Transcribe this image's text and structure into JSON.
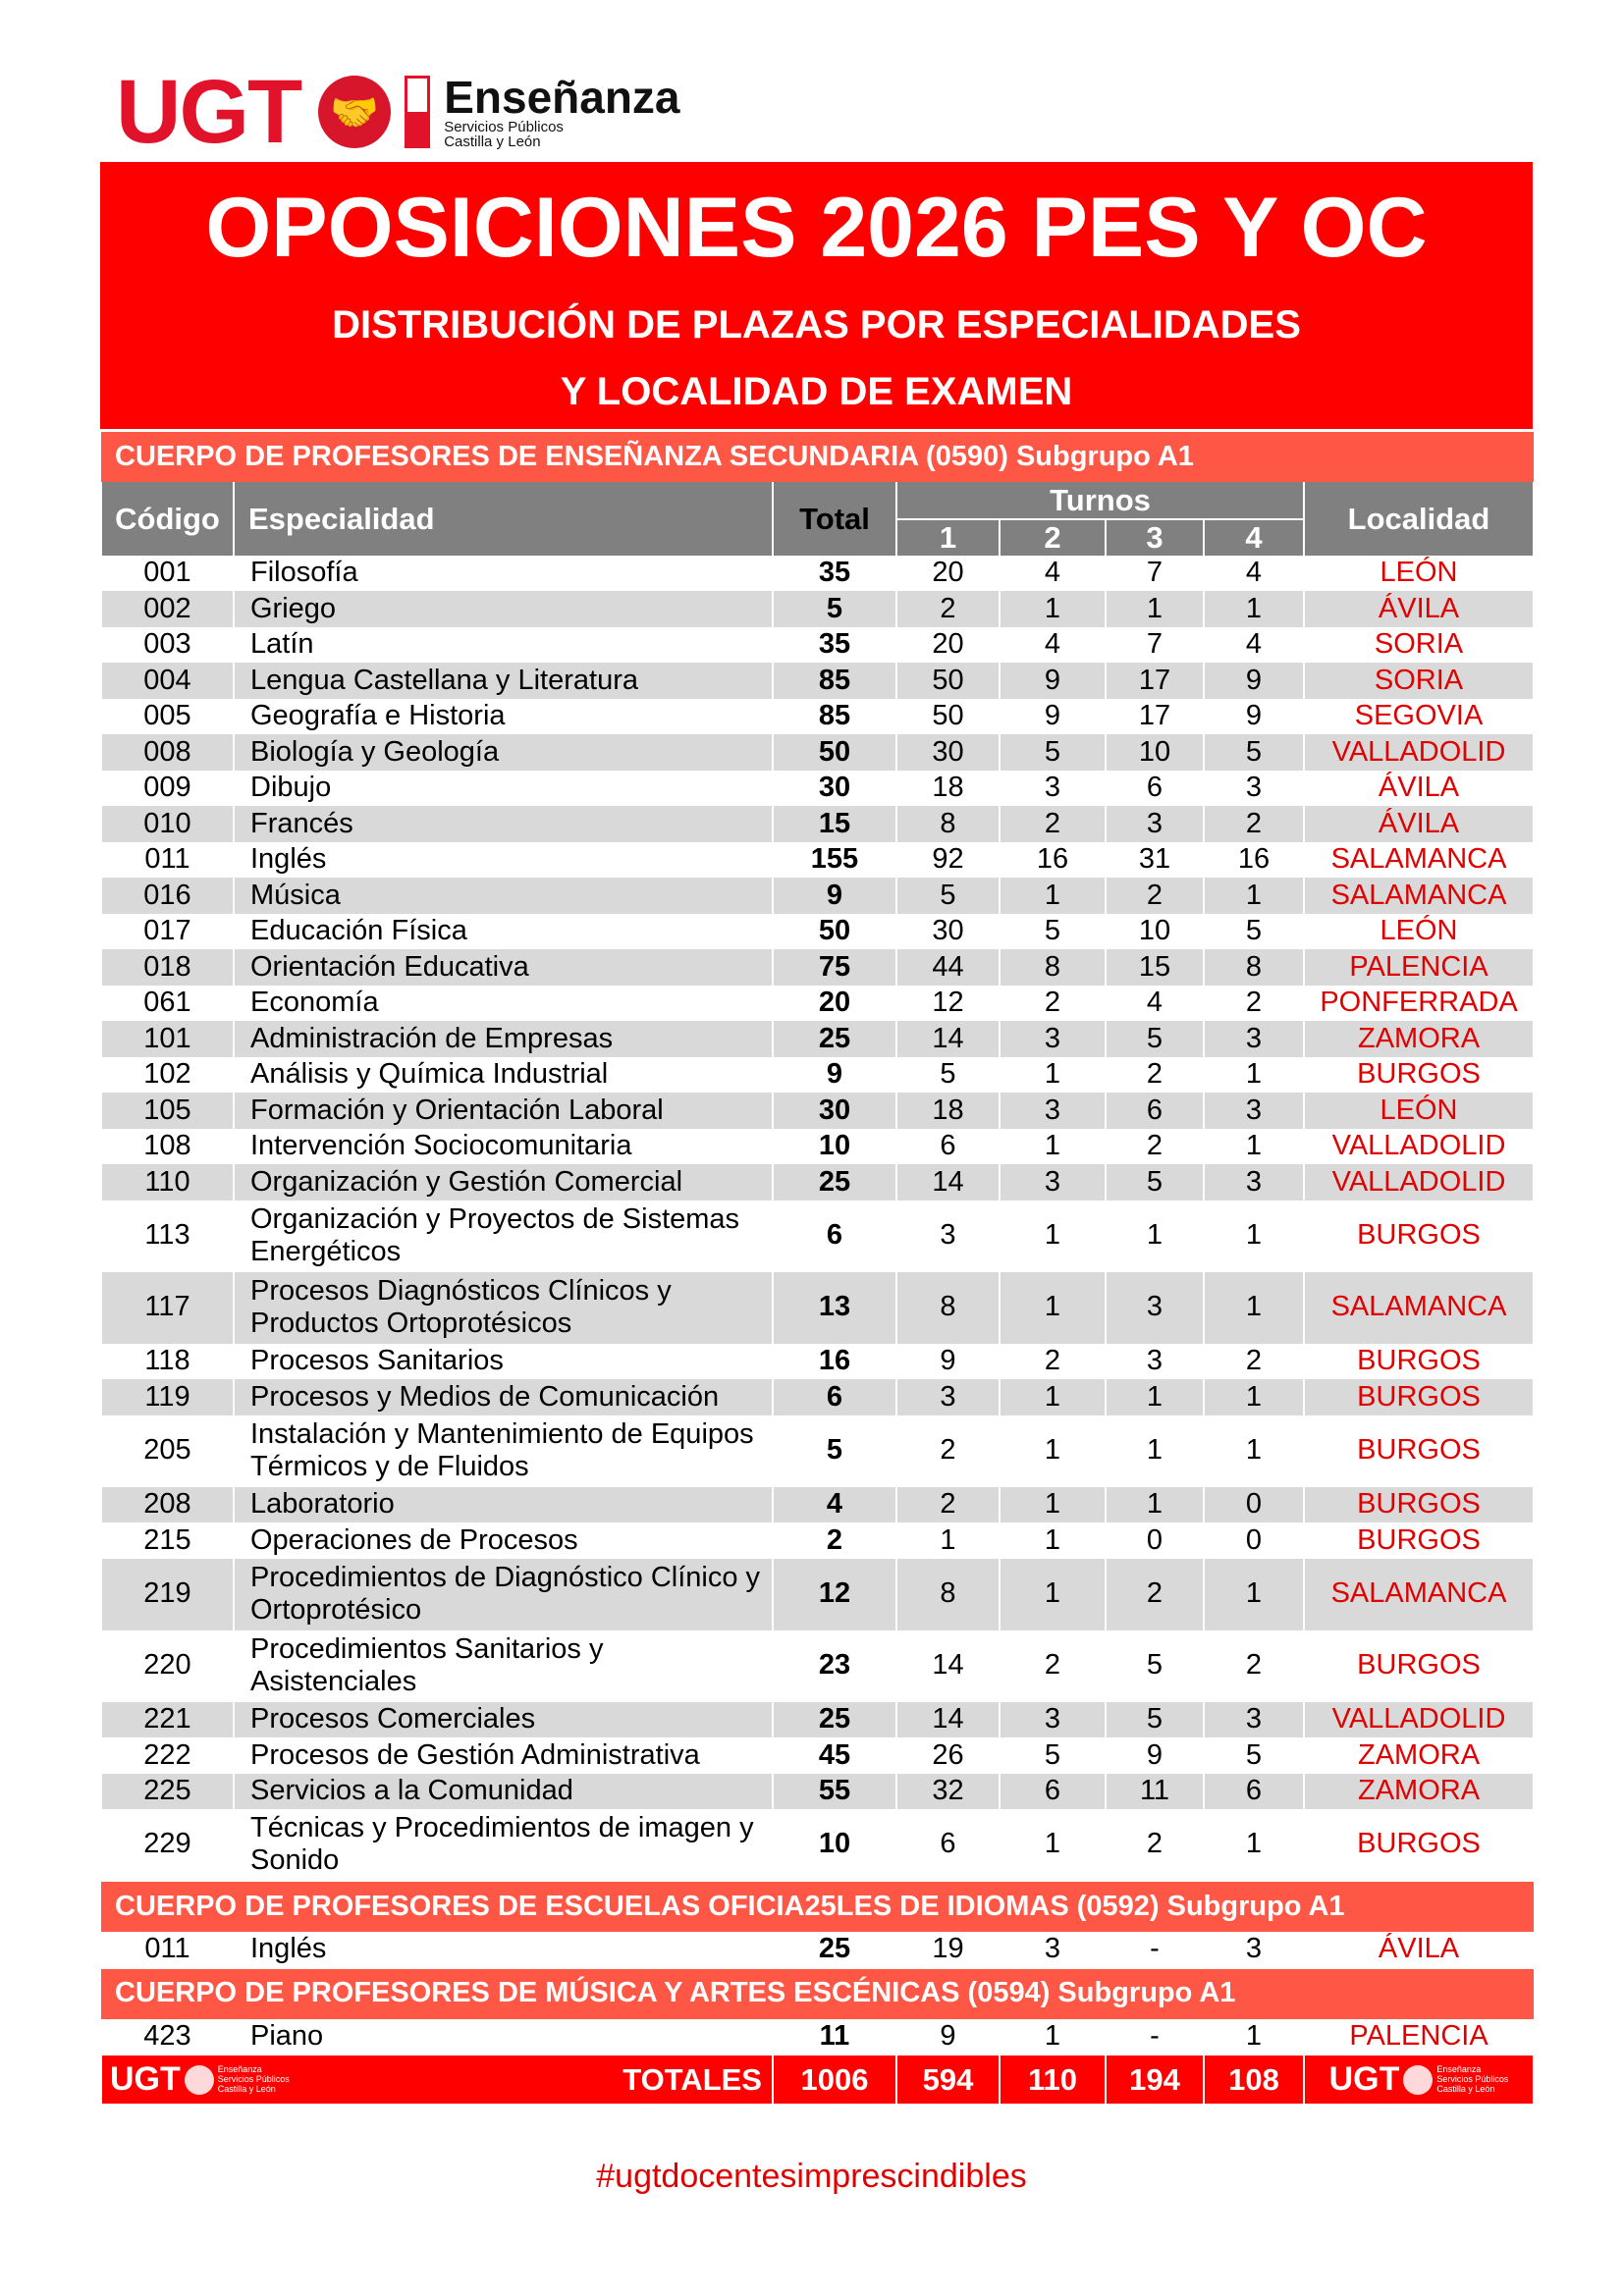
{
  "logo": {
    "ugt": "UGT",
    "name": "Enseñanza",
    "line1": "Servicios Públicos",
    "line2": "Castilla y León"
  },
  "title": "OPOSICIONES 2026 PES Y OC",
  "subtitle1": "DISTRIBUCIÓN DE PLAZAS POR ESPECIALIDADES",
  "subtitle2": "Y LOCALIDAD DE EXAMEN",
  "headers": {
    "codigo": "Código",
    "especialidad": "Especialidad",
    "total": "Total",
    "turnos": "Turnos",
    "t1": "1",
    "t2": "2",
    "t3": "3",
    "t4": "4",
    "localidad": "Localidad"
  },
  "sections": [
    {
      "title": "CUERPO DE PROFESORES DE ENSEÑANZA SECUNDARIA (0590) Subgrupo A1",
      "rows": [
        [
          "001",
          "Filosofía",
          "35",
          "20",
          "4",
          "7",
          "4",
          "LEÓN"
        ],
        [
          "002",
          "Griego",
          "5",
          "2",
          "1",
          "1",
          "1",
          "ÁVILA"
        ],
        [
          "003",
          "Latín",
          "35",
          "20",
          "4",
          "7",
          "4",
          "SORIA"
        ],
        [
          "004",
          "Lengua Castellana y Literatura",
          "85",
          "50",
          "9",
          "17",
          "9",
          "SORIA"
        ],
        [
          "005",
          "Geografía e Historia",
          "85",
          "50",
          "9",
          "17",
          "9",
          "SEGOVIA"
        ],
        [
          "008",
          "Biología y Geología",
          "50",
          "30",
          "5",
          "10",
          "5",
          "VALLADOLID"
        ],
        [
          "009",
          "Dibujo",
          "30",
          "18",
          "3",
          "6",
          "3",
          "ÁVILA"
        ],
        [
          "010",
          "Francés",
          "15",
          "8",
          "2",
          "3",
          "2",
          "ÁVILA"
        ],
        [
          "011",
          "Inglés",
          "155",
          "92",
          "16",
          "31",
          "16",
          "SALAMANCA"
        ],
        [
          "016",
          "Música",
          "9",
          "5",
          "1",
          "2",
          "1",
          "SALAMANCA"
        ],
        [
          "017",
          "Educación Física",
          "50",
          "30",
          "5",
          "10",
          "5",
          "LEÓN"
        ],
        [
          "018",
          "Orientación Educativa",
          "75",
          "44",
          "8",
          "15",
          "8",
          "PALENCIA"
        ],
        [
          "061",
          "Economía",
          "20",
          "12",
          "2",
          "4",
          "2",
          "PONFERRADA"
        ],
        [
          "101",
          "Administración de Empresas",
          "25",
          "14",
          "3",
          "5",
          "3",
          "ZAMORA"
        ],
        [
          "102",
          "Análisis y Química Industrial",
          "9",
          "5",
          "1",
          "2",
          "1",
          "BURGOS"
        ],
        [
          "105",
          "Formación y Orientación Laboral",
          "30",
          "18",
          "3",
          "6",
          "3",
          "LEÓN"
        ],
        [
          "108",
          "Intervención Sociocomunitaria",
          "10",
          "6",
          "1",
          "2",
          "1",
          "VALLADOLID"
        ],
        [
          "110",
          "Organización y Gestión Comercial",
          "25",
          "14",
          "3",
          "5",
          "3",
          "VALLADOLID"
        ],
        [
          "113",
          "Organización y Proyectos de Sistemas Energéticos",
          "6",
          "3",
          "1",
          "1",
          "1",
          "BURGOS"
        ],
        [
          "117",
          "Procesos Diagnósticos Clínicos y Productos Ortoprotésicos",
          "13",
          "8",
          "1",
          "3",
          "1",
          "SALAMANCA"
        ],
        [
          "118",
          "Procesos Sanitarios",
          "16",
          "9",
          "2",
          "3",
          "2",
          "BURGOS"
        ],
        [
          "119",
          "Procesos y Medios de Comunicación",
          "6",
          "3",
          "1",
          "1",
          "1",
          "BURGOS"
        ],
        [
          "205",
          "Instalación y Mantenimiento de Equipos Térmicos y de Fluidos",
          "5",
          "2",
          "1",
          "1",
          "1",
          "BURGOS"
        ],
        [
          "208",
          "Laboratorio",
          "4",
          "2",
          "1",
          "1",
          "0",
          "BURGOS"
        ],
        [
          "215",
          "Operaciones de Procesos",
          "2",
          "1",
          "1",
          "0",
          "0",
          "BURGOS"
        ],
        [
          "219",
          "Procedimientos de Diagnóstico Clínico y Ortoprotésico",
          "12",
          "8",
          "1",
          "2",
          "1",
          "SALAMANCA"
        ],
        [
          "220",
          "Procedimientos Sanitarios y Asistenciales",
          "23",
          "14",
          "2",
          "5",
          "2",
          "BURGOS"
        ],
        [
          "221",
          "Procesos Comerciales",
          "25",
          "14",
          "3",
          "5",
          "3",
          "VALLADOLID"
        ],
        [
          "222",
          "Procesos de Gestión Administrativa",
          "45",
          "26",
          "5",
          "9",
          "5",
          "ZAMORA"
        ],
        [
          "225",
          "Servicios a la Comunidad",
          "55",
          "32",
          "6",
          "11",
          "6",
          "ZAMORA"
        ],
        [
          "229",
          "Técnicas y Procedimientos de imagen y Sonido",
          "10",
          "6",
          "1",
          "2",
          "1",
          "BURGOS"
        ]
      ]
    },
    {
      "title": "CUERPO DE PROFESORES DE ESCUELAS OFICIA25LES DE IDIOMAS (0592) Subgrupo A1",
      "rows": [
        [
          "011",
          "Inglés",
          "25",
          "19",
          "3",
          "-",
          "3",
          "ÁVILA"
        ]
      ]
    },
    {
      "title": "CUERPO DE PROFESORES DE MÚSICA Y ARTES ESCÉNICAS (0594) Subgrupo A1",
      "rows": [
        [
          "423",
          "Piano",
          "11",
          "9",
          "1",
          "-",
          "1",
          "PALENCIA"
        ]
      ]
    }
  ],
  "totals": {
    "label": "TOTALES",
    "total": "1006",
    "t1": "594",
    "t2": "110",
    "t3": "194",
    "t4": "108"
  },
  "hashtag": "#ugtdocentesimprescindibles",
  "colors": {
    "title_bg": "#ff0000",
    "section_bg": "#ff5745",
    "header_bg": "#808080",
    "stripe": "#d9d9d9",
    "localidad": "#e00000"
  }
}
